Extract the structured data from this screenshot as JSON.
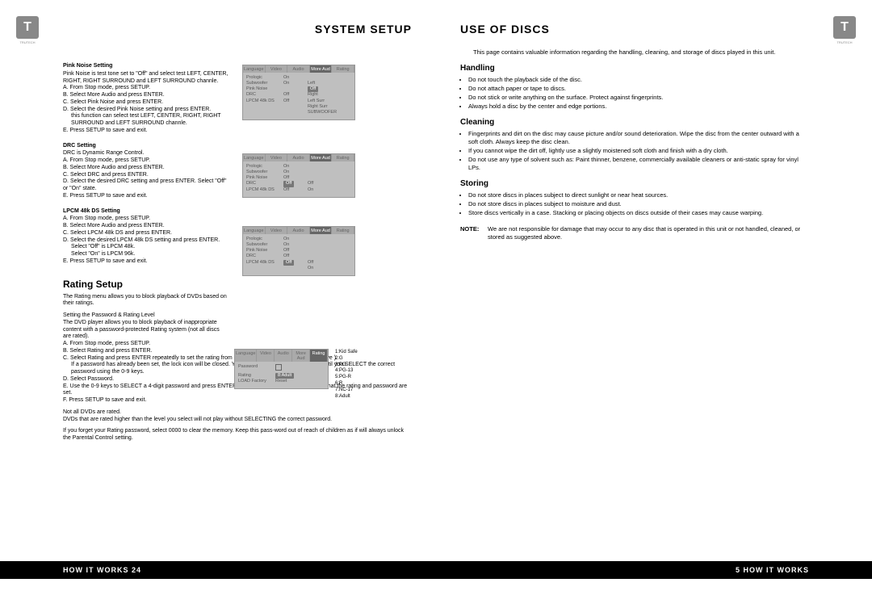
{
  "brand": "T",
  "brand_sub": "TRUTECH",
  "left": {
    "title": "SYSTEM SETUP",
    "footer": "HOW IT WORKS   24",
    "pink_noise": {
      "heading": "Pink Noise Setting",
      "intro": "Pink Noise is test tone set to \"Off\" and select test LEFT, CENTER, RIGHT, RIGHT SURROUND and LEFT SURROUND channle.",
      "a": "A.  From Stop mode, press SETUP.",
      "b": "B.  Select More Audio and press ENTER.",
      "c": "C.  Select Pink Noise and press ENTER.",
      "d": "D.  Select the desired Pink Noise setting and press ENTER.",
      "d2": "this function can select test LEFT, CENTER, RIGHT, RIGHT SURROUND and LEFT SURROUND channle.",
      "e": "E.  Press SETUP to save and exit."
    },
    "drc": {
      "heading": "DRC Setting",
      "intro": "DRC is Dynamic Range Control.",
      "a": "A.  From Stop mode, press SETUP.",
      "b": "B.  Select More Audio and press ENTER.",
      "c": "C.  Select DRC and press ENTER.",
      "d": "D.  Select the desired DRC setting and press ENTER. Select \"Off\" or \"On\" state.",
      "e": "E.  Press SETUP to save and exit."
    },
    "lpcm": {
      "heading": "LPCM 48k DS Setting",
      "a": "A.  From Stop mode, press SETUP.",
      "b": "B.  Select More Audio and press ENTER.",
      "c": "C.  Select LPCM 48k DS and press ENTER.",
      "d": "D.  Select the desired LPCM 48k DS setting and press ENTER.",
      "d2": "Select \"Off\" is LPCM 48k.",
      "d3": "Select \"On\" is LPCM 96k.",
      "e": "E.  Press SETUP to save and exit."
    },
    "rating": {
      "heading": "Rating Setup",
      "p1": "The Rating menu allows you to block playback of DVDs based on their ratings.",
      "sub": "Setting the Password & Rating Level",
      "p2": "The DVD player allows you to block playback of inappropriate content with a password-protected Rating system (not all discs are rated).",
      "a": "A.  From Stop mode, press SETUP.",
      "b": "B.  Select Rating and press ENTER.",
      "c": "C.  Select Rating and press ENTER repeatedly to set the rating from 1 (most restrictive) to 8( least restrictive ).",
      "c2": "If a password has already been set, the lock icon will be  closed. You will not be able to select Rating until you SELECT the correct password using the 0-9 keys.",
      "d": "D. Select Password.",
      "e": "E. Use the 0-9 keys to SELECT a 4-digit password and press ENTER. The lock icon will close to indicate that the rating and password are set.",
      "f": "F. Press SETUP to save and exit.",
      "note1": "Not all DVDs are rated.",
      "note2": "DVDs that are rated higher than the level you select will not play without SELECTING the correct password.",
      "note3": "If you forget your Rating password, select 0000 to clear the memory.  Keep this pass-word out of reach of children as if will always unlock the Parental Control setting."
    },
    "menu_tabs": [
      "Language",
      "Video",
      "Audio",
      "More Aud",
      "Rating"
    ],
    "screenshot1": {
      "rows": [
        [
          "Prologic",
          "On",
          ""
        ],
        [
          "Subwoofer",
          "On",
          "Left"
        ],
        [
          "Pink Noise",
          "",
          "Center"
        ],
        [
          "DRC",
          "Off",
          "Right"
        ],
        [
          "LPCM 48k DS",
          "Off",
          "Left Surr"
        ],
        [
          "",
          "",
          "Right Surr"
        ],
        [
          "",
          "",
          "SUBWOOFER"
        ]
      ],
      "highlight_row": 2,
      "highlight_col": 2,
      "highlight_text": "Off"
    },
    "screenshot2": {
      "rows": [
        [
          "Prologic",
          "On",
          ""
        ],
        [
          "Subwoofer",
          "On",
          ""
        ],
        [
          "Pink Noise",
          "Off",
          ""
        ],
        [
          "DRC",
          "",
          "Off"
        ],
        [
          "LPCM 48k DS",
          "Off",
          "On"
        ]
      ],
      "highlight_row": 3,
      "highlight_col": 1,
      "highlight_text": "Off"
    },
    "screenshot3": {
      "rows": [
        [
          "Prologic",
          "On",
          ""
        ],
        [
          "Subwoofer",
          "On",
          ""
        ],
        [
          "Pink Noise",
          "Off",
          ""
        ],
        [
          "DRC",
          "Off",
          ""
        ],
        [
          "LPCM 48k DS",
          "",
          "Off"
        ],
        [
          "",
          "",
          "On"
        ]
      ],
      "highlight_row": 4,
      "highlight_col": 1,
      "highlight_text": "Off"
    },
    "screenshot4": {
      "rows": [
        [
          "Password",
          "",
          ""
        ],
        [
          "Rating",
          "",
          ""
        ],
        [
          "LOAD Factory",
          "Reset",
          ""
        ]
      ],
      "highlight_row": 1,
      "highlight_col": 1,
      "highlight_text": "8:Adult",
      "lock_row": 0
    },
    "rating_legend": [
      "1:Kid Safe",
      "2:G",
      "3:PG",
      "4:PG-13",
      "5:PG-R",
      "6:R",
      "7:NC-17",
      "8:Adult"
    ]
  },
  "right": {
    "title": "USE OF DISCS",
    "footer": "5   HOW IT WORKS",
    "intro": "This  page  contains valuable  information  regarding the  handling,  cleaning,  and  storage of discs played in this unit.",
    "handling": {
      "h": "Handling",
      "b1": "Do not touch the playback side of the disc.",
      "b2": "Do not attach paper or tape to discs.",
      "b3": "Do not stick or write anything on the surface.  Protect against fingerprints.",
      "b4": "Always hold a disc by the center and edge portions."
    },
    "cleaning": {
      "h": "Cleaning",
      "b1": "Fingerprints and dirt on the disc may cause picture and/or sound deterioration. Wipe the  disc from the center outward with a soft cloth.  Always keep the disc clean.",
      "b2": "If you cannot wipe the dirt off, lightly use a slightly moistened soft cloth and finish with a dry  cloth.",
      "b3": "Do not use any type of solvent such as: Paint thinner, benzene, commercially available cleaners or anti-static spray for vinyl LPs."
    },
    "storing": {
      "h": "Storing",
      "b1": "Do not store discs in places subject to direct sunlight or near heat sources.",
      "b2": "Do not store discs in places subject to moisture and dust.",
      "b3": "Store discs vertically in a case. Stacking or placing objects on discs outside of their cases may cause warping."
    },
    "note_label": "NOTE:",
    "note": "We are not responsible for damage that may occur to any disc that is operated  in this unit or not handled, cleaned, or stored as suggested above."
  }
}
